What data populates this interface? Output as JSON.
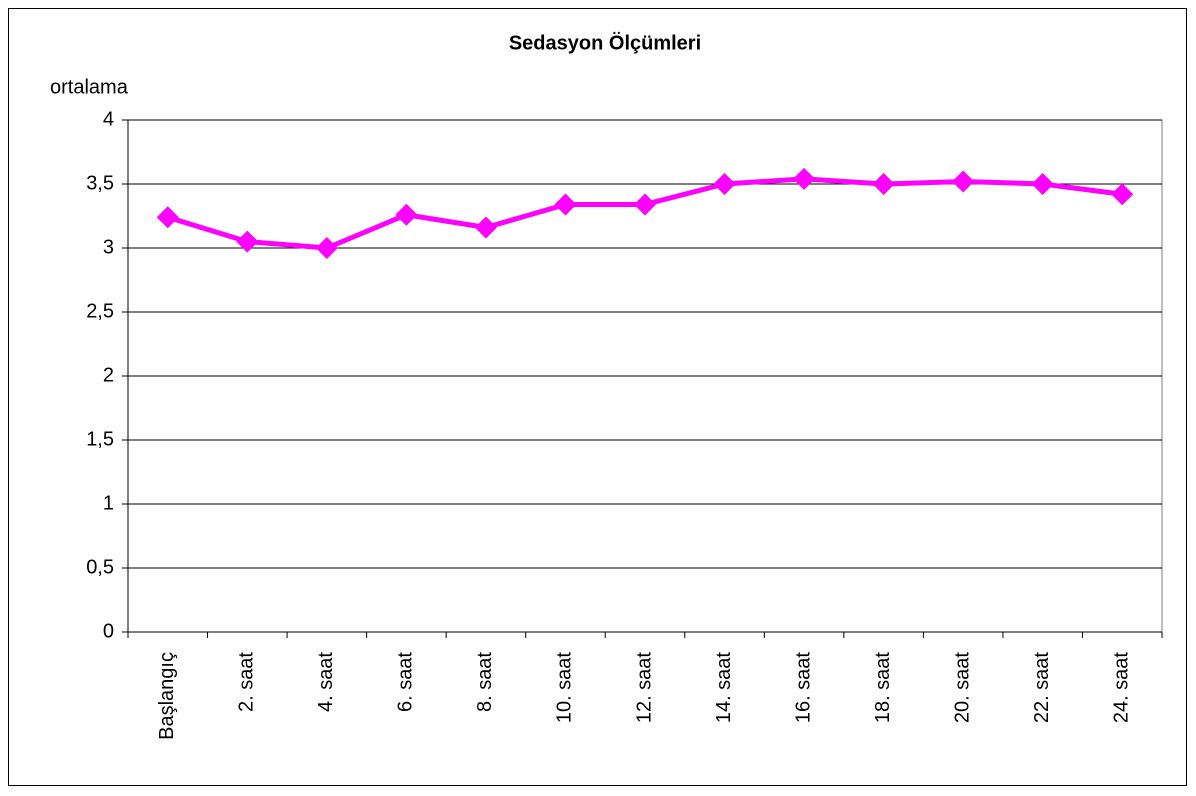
{
  "chart_data": {
    "type": "line",
    "title": "Sedasyon Ölçümleri",
    "y_label": "ortalama",
    "categories": [
      "Başlangıç",
      "2. saat",
      "4. saat",
      "6. saat",
      "8. saat",
      "10. saat",
      "12. saat",
      "14. saat",
      "16. saat",
      "18. saat",
      "20. saat",
      "22. saat",
      "24. saat"
    ],
    "values": [
      3.24,
      3.05,
      3.0,
      3.26,
      3.16,
      3.34,
      3.34,
      3.5,
      3.54,
      3.5,
      3.52,
      3.5,
      3.42
    ],
    "color": "#ff00ff",
    "marker": "diamond",
    "ylim": [
      0,
      4
    ],
    "yticks": [
      0,
      {
        "value": 0.5,
        "label": "0,5"
      },
      1,
      {
        "value": 1.5,
        "label": "1,5"
      },
      2,
      {
        "value": 2.5,
        "label": "2,5"
      },
      3,
      {
        "value": 3.5,
        "label": "3,5"
      },
      4
    ],
    "grid": true
  }
}
